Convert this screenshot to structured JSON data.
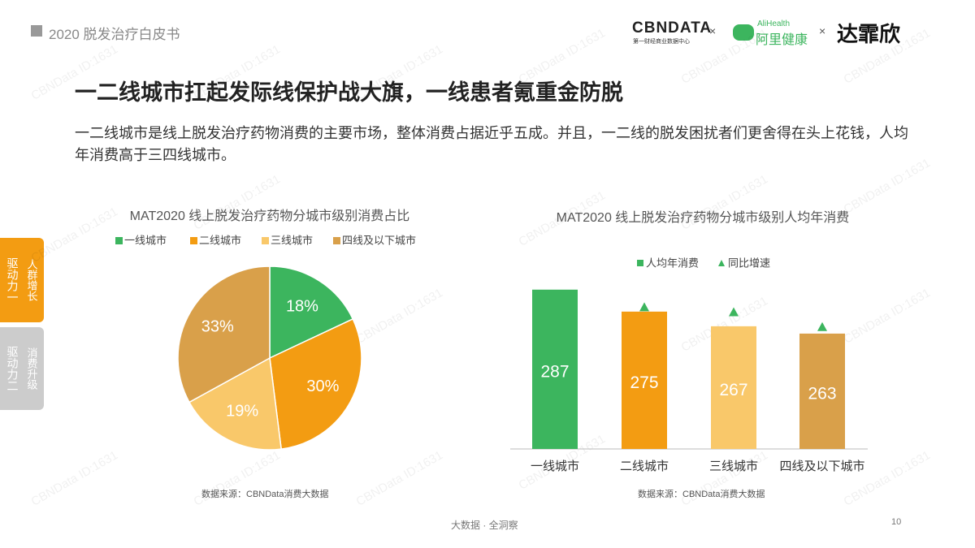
{
  "header": {
    "report": "2020 脱发治疗白皮书",
    "logo_cbn": "CBNDATA",
    "logo_cbn_sub": "第一财经商业数据中心",
    "logo_ali_en": "AliHealth",
    "logo_ali": "阿里健康",
    "logo_dfx": "达霏欣",
    "sep": "×"
  },
  "title": "一二线城市扛起发际线保护战大旗，一线患者氪重金防脱",
  "body": "一二线城市是线上脱发治疗药物消费的主要市场，整体消费占据近乎五成。并且，一二线的脱发困扰者们更舍得在头上花钱，人均年消费高于三四线城市。",
  "tabs": [
    {
      "label": "驱动力一",
      "sub": "人群增长"
    },
    {
      "label": "驱动力二",
      "sub": "消费升级"
    }
  ],
  "watermark": "CBNData ID:1631",
  "chart_data": [
    {
      "type": "pie",
      "title": "MAT2020 线上脱发治疗药物分城市级别消费占比",
      "categories": [
        "一线城市",
        "二线城市",
        "三线城市",
        "四线及以下城市"
      ],
      "values": [
        18,
        30,
        19,
        33
      ],
      "value_labels": [
        "18%",
        "30%",
        "19%",
        "33%"
      ],
      "colors": [
        "#3cb55e",
        "#f39c12",
        "#f9c86a",
        "#d9a04a"
      ],
      "source": "数据来源：CBNData消费大数据"
    },
    {
      "type": "bar",
      "title": "MAT2020 线上脱发治疗药物分城市级别人均年消费",
      "categories": [
        "一线城市",
        "二线城市",
        "三线城市",
        "四线及以下城市"
      ],
      "series": [
        {
          "name": "人均年消费",
          "colors": [
            "#3cb55e",
            "#f39c12",
            "#f9c86a",
            "#d9a04a"
          ],
          "color": "#3cb55e",
          "values": [
            287,
            275,
            267,
            263
          ]
        },
        {
          "name": "同比增速",
          "color": "#3cb55e",
          "axis": "y2",
          "values": [
            null,
            86,
            83,
            74
          ]
        }
      ],
      "ylim": [
        200,
        290
      ],
      "y2lim": [
        0,
        100
      ],
      "source": "数据来源：CBNData消费大数据"
    }
  ],
  "footer": {
    "tagline": "大数据 · 全洞察",
    "page": "10"
  }
}
